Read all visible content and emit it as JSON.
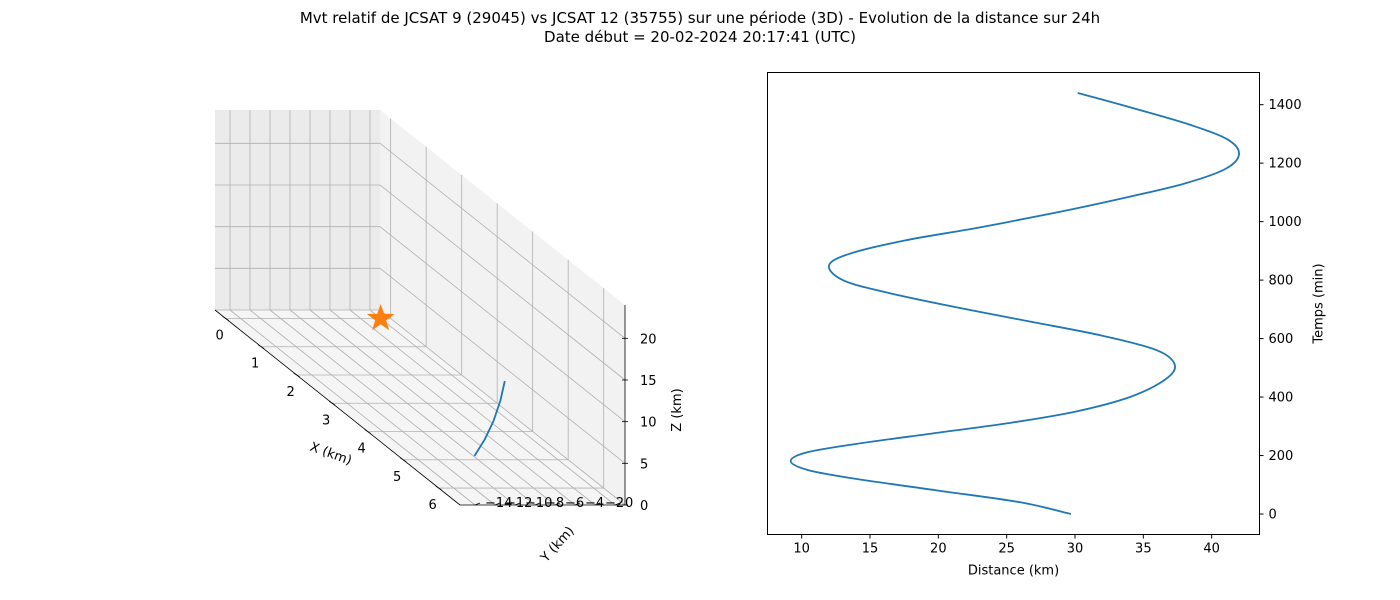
{
  "title": {
    "line1": "Mvt relatif de JCSAT 9 (29045) vs JCSAT 12 (35755) sur une période (3D) - Evolution de la distance sur 24h",
    "line2": "Date début = 20-02-2024 20:17:41 (UTC)"
  },
  "colors": {
    "series": "#1f77b4",
    "marker": "#ff7f0e",
    "grid": "#b0b0b0",
    "pane": "#f2f2f2"
  },
  "chart_data": [
    {
      "type": "line3d",
      "xlabel": "X (km)",
      "ylabel": "Y (km)",
      "zlabel": "Z (km)",
      "x_ticks": [
        "0",
        "1",
        "2",
        "3",
        "4",
        "5",
        "6"
      ],
      "y_ticks": [
        "0",
        "−2",
        "−4",
        "−6",
        "−8",
        "−10",
        "−12",
        "−14"
      ],
      "z_ticks": [
        "0",
        "5",
        "10",
        "15",
        "20"
      ],
      "xlim": [
        -0.3,
        6.6
      ],
      "ylim": [
        -15.5,
        1
      ],
      "zlim": [
        0,
        24
      ],
      "marker": {
        "symbol": "star",
        "x": 0,
        "y": 0,
        "z": 0
      },
      "series": [
        {
          "points": [
            [
              5.6,
              -10.5,
              2.5
            ],
            [
              5.75,
              -10.0,
              5.0
            ],
            [
              5.85,
              -9.5,
              7.5
            ],
            [
              5.85,
              -8.8,
              10.0
            ],
            [
              5.75,
              -8.0,
              12.0
            ]
          ]
        }
      ]
    },
    {
      "type": "line",
      "xlabel": "Distance (km)",
      "ylabel": "Temps (min)",
      "x_ticks": [
        10,
        15,
        20,
        25,
        30,
        35,
        40
      ],
      "y_ticks": [
        0,
        200,
        400,
        600,
        800,
        1000,
        1200,
        1400
      ],
      "xlim": [
        7.5,
        43.5
      ],
      "ylim": [
        -70,
        1510
      ],
      "y_axis_side": "right",
      "series": [
        {
          "x": [
            29.7,
            26.0,
            20.0,
            14.0,
            10.5,
            9.2,
            10.3,
            14.0,
            19.5,
            25.0,
            30.0,
            34.0,
            36.6,
            37.3,
            36.0,
            32.0,
            26.5,
            21.0,
            16.0,
            13.0,
            12.0,
            13.5,
            17.5,
            23.0,
            28.5,
            33.5,
            38.0,
            41.0,
            42.0,
            41.2,
            38.5,
            34.5,
            30.2
          ],
          "y": [
            0,
            40,
            80,
            120,
            150,
            180,
            210,
            240,
            275,
            310,
            350,
            400,
            460,
            510,
            560,
            610,
            660,
            710,
            760,
            800,
            850,
            890,
            935,
            980,
            1030,
            1080,
            1130,
            1180,
            1230,
            1280,
            1330,
            1385,
            1440
          ]
        }
      ]
    }
  ]
}
